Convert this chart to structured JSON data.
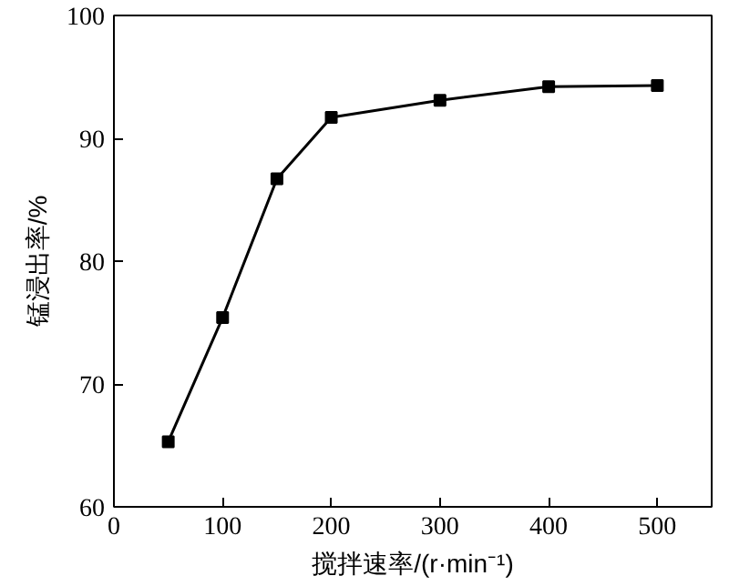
{
  "chart_data": {
    "type": "line",
    "xlabel": "搅拌速率/(r·min⁻¹)",
    "ylabel": "锰浸出率/%",
    "x": [
      50,
      100,
      150,
      200,
      300,
      400,
      500
    ],
    "series": [
      {
        "color": "#000000",
        "values": [
          65.3,
          75.4,
          86.7,
          91.7,
          93.1,
          94.2,
          94.3
        ]
      }
    ],
    "xlim": [
      0,
      550
    ],
    "xticks": [
      0,
      100,
      200,
      300,
      400,
      500
    ],
    "ylim": [
      60,
      100
    ],
    "yticks": [
      60,
      70,
      80,
      90,
      100
    ],
    "grid": false,
    "marker": "square",
    "line_style": "solid"
  }
}
